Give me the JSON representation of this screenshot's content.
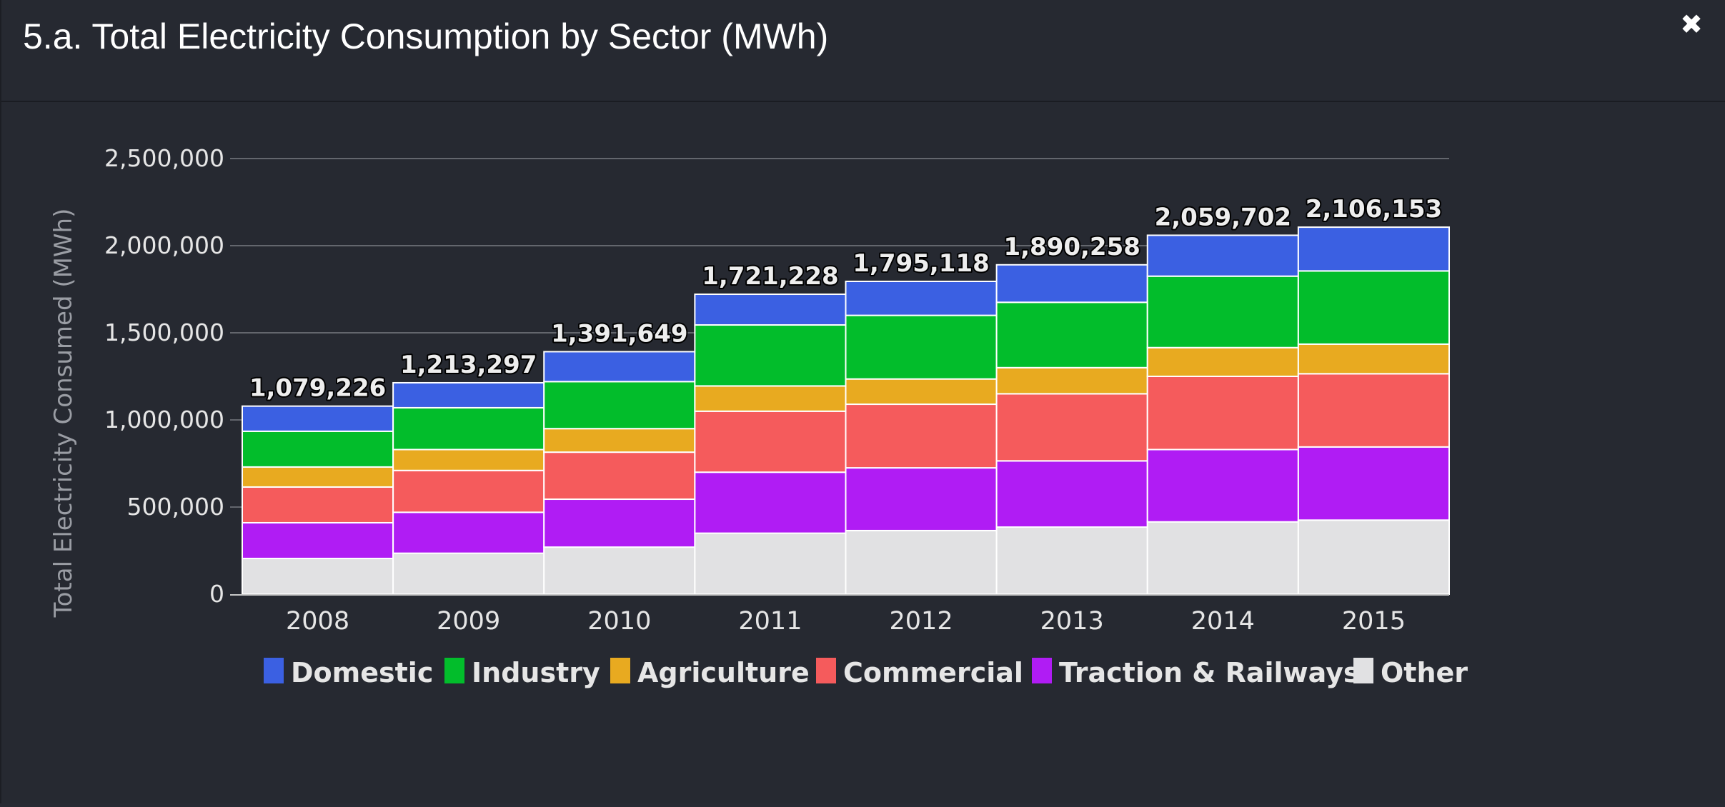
{
  "window": {
    "title": "5.a. Total Electricity Consumption by Sector (MWh)",
    "close_icon": "close-icon",
    "close_glyph": "✖"
  },
  "colors": {
    "background": "#262931",
    "gridline": "#63666d",
    "axis": "#c8c8c8",
    "bar_border": "#ffffff"
  },
  "chart_data": {
    "type": "bar",
    "stacked": true,
    "title": "5.a. Total Electricity Consumption by Sector (MWh)",
    "ylabel": "Total Electricity Consumed (MWh)",
    "xlabel": "",
    "ylim": [
      0,
      2500000
    ],
    "yticks": [
      0,
      500000,
      1000000,
      1500000,
      2000000,
      2500000
    ],
    "ytick_labels": [
      "0",
      "500,000",
      "1,000,000",
      "1,500,000",
      "2,000,000",
      "2,500,000"
    ],
    "grid": true,
    "legend": "bottom",
    "categories": [
      "2008",
      "2009",
      "2010",
      "2011",
      "2012",
      "2013",
      "2014",
      "2015"
    ],
    "totals": [
      1079226,
      1213297,
      1391649,
      1721228,
      1795118,
      1890258,
      2059702,
      2106153
    ],
    "total_labels": [
      "1,079,226",
      "1,213,297",
      "1,391,649",
      "1,721,228",
      "1,795,118",
      "1,890,258",
      "2,059,702",
      "2,106,153"
    ],
    "series": [
      {
        "name": "Other",
        "color": "#e1e1e3",
        "values": [
          205000,
          235000,
          270000,
          350000,
          365000,
          385000,
          415000,
          425000
        ]
      },
      {
        "name": "Traction & Railways",
        "color": "#b01cf4",
        "values": [
          205000,
          235000,
          275000,
          350000,
          360000,
          380000,
          415000,
          420000
        ]
      },
      {
        "name": "Commercial",
        "color": "#f55b5c",
        "values": [
          205000,
          240000,
          270000,
          350000,
          365000,
          385000,
          420000,
          420000
        ]
      },
      {
        "name": "Agriculture",
        "color": "#e8aa20",
        "values": [
          115000,
          120000,
          135000,
          145000,
          145000,
          150000,
          165000,
          170000
        ]
      },
      {
        "name": "Industry",
        "color": "#02bd2b",
        "values": [
          205000,
          240000,
          270000,
          350000,
          365000,
          375000,
          410000,
          420000
        ]
      },
      {
        "name": "Domestic",
        "color": "#3b60e2",
        "values": [
          144226,
          143297,
          171649,
          176228,
          195118,
          215258,
          234702,
          251153
        ]
      }
    ],
    "legend_order": [
      "Domestic",
      "Industry",
      "Agriculture",
      "Commercial",
      "Traction & Railways",
      "Other"
    ]
  }
}
